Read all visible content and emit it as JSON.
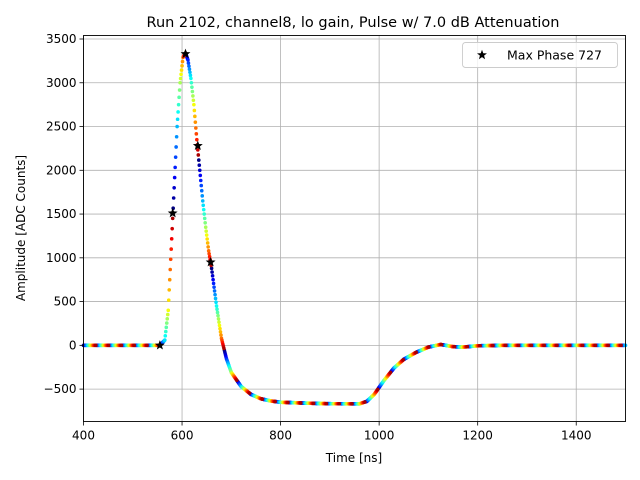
{
  "chart_data": {
    "type": "scatter",
    "title": "Run 2102, channel8, lo gain, Pulse w/ 7.0 dB Attenuation",
    "xlabel": "Time [ns]",
    "ylabel": "Amplitude [ADC Counts]",
    "xlim": [
      400,
      1500
    ],
    "ylim": [
      -870,
      3540
    ],
    "xticks": [
      400,
      600,
      800,
      1000,
      1200,
      1400
    ],
    "yticks": [
      -500,
      0,
      500,
      1000,
      1500,
      2000,
      2500,
      3000,
      3500
    ],
    "grid": true,
    "legend": {
      "placement": "top-right",
      "entries": [
        "Max Phase 727"
      ]
    },
    "colormap": "jet",
    "pulse_curve": [
      [
        400,
        0
      ],
      [
        555,
        0
      ],
      [
        565,
        60
      ],
      [
        572,
        400
      ],
      [
        578,
        1100
      ],
      [
        584,
        1800
      ],
      [
        590,
        2500
      ],
      [
        596,
        3000
      ],
      [
        602,
        3290
      ],
      [
        607,
        3340
      ],
      [
        612,
        3260
      ],
      [
        618,
        3050
      ],
      [
        624,
        2750
      ],
      [
        630,
        2350
      ],
      [
        636,
        2000
      ],
      [
        642,
        1650
      ],
      [
        648,
        1350
      ],
      [
        654,
        1080
      ],
      [
        660,
        880
      ],
      [
        670,
        450
      ],
      [
        680,
        80
      ],
      [
        690,
        -150
      ],
      [
        700,
        -310
      ],
      [
        720,
        -470
      ],
      [
        740,
        -560
      ],
      [
        760,
        -610
      ],
      [
        780,
        -635
      ],
      [
        800,
        -650
      ],
      [
        850,
        -660
      ],
      [
        900,
        -667
      ],
      [
        960,
        -668
      ],
      [
        975,
        -640
      ],
      [
        990,
        -560
      ],
      [
        1010,
        -400
      ],
      [
        1030,
        -260
      ],
      [
        1050,
        -160
      ],
      [
        1075,
        -80
      ],
      [
        1100,
        -20
      ],
      [
        1125,
        10
      ],
      [
        1150,
        -15
      ],
      [
        1170,
        -20
      ],
      [
        1200,
        -5
      ],
      [
        1250,
        0
      ],
      [
        1300,
        0
      ],
      [
        1400,
        0
      ],
      [
        1500,
        0
      ]
    ],
    "max_phase_series": {
      "name": "Max Phase 727",
      "x": [
        555,
        581,
        607,
        632,
        658
      ],
      "y": [
        0,
        1510,
        3330,
        2280,
        950
      ]
    }
  }
}
